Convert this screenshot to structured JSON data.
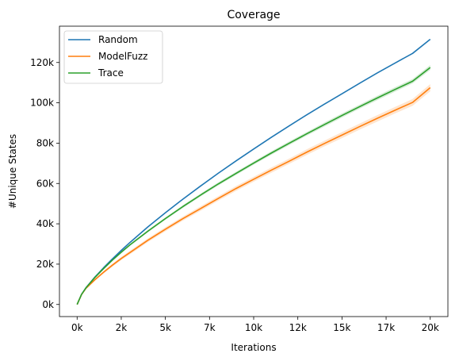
{
  "chart_data": {
    "type": "line",
    "title": "Coverage",
    "xlabel": "Iterations",
    "ylabel": "#Unique States",
    "xlim": [
      -1000,
      21000
    ],
    "ylim": [
      -6000,
      138000
    ],
    "x_ticks": [
      0,
      2500,
      5000,
      7500,
      10000,
      12500,
      15000,
      17500,
      20000
    ],
    "x_tick_labels": [
      "0k",
      "2k",
      "5k",
      "7k",
      "10k",
      "12k",
      "15k",
      "17k",
      "20k"
    ],
    "y_ticks": [
      0,
      20000,
      40000,
      60000,
      80000,
      100000,
      120000
    ],
    "y_tick_labels": [
      "0k",
      "20k",
      "40k",
      "60k",
      "80k",
      "100k",
      "120k"
    ],
    "grid": false,
    "legend_position": "top-left",
    "x": [
      0,
      250,
      500,
      1000,
      1500,
      2000,
      2500,
      3000,
      4000,
      5000,
      6000,
      7000,
      8000,
      9000,
      10000,
      11000,
      12000,
      13000,
      14000,
      15000,
      16000,
      17000,
      18000,
      19000,
      20000
    ],
    "series": [
      {
        "name": "Random",
        "color": "#1f77b4",
        "values": [
          0,
          5000,
          8300,
          13500,
          18200,
          22600,
          26800,
          30800,
          38400,
          45500,
          52300,
          58800,
          65100,
          71200,
          77100,
          82900,
          88500,
          94000,
          99300,
          104500,
          109700,
          114800,
          119700,
          124500,
          131500
        ]
      },
      {
        "name": "ModelFuzz",
        "color": "#ff7f0e",
        "band_halfwidth": [
          0,
          300,
          400,
          500,
          600,
          700,
          800,
          900,
          900,
          1000,
          1000,
          1100,
          1100,
          1200,
          1200,
          1300,
          1300,
          1400,
          1400,
          1500,
          1500,
          1600,
          1600,
          1700,
          1800
        ],
        "values": [
          0,
          4900,
          8000,
          12200,
          16000,
          19500,
          22800,
          25800,
          31800,
          37300,
          42600,
          47600,
          52600,
          57500,
          62100,
          66600,
          71000,
          75500,
          79800,
          84000,
          88200,
          92300,
          96300,
          100200,
          107500
        ]
      },
      {
        "name": "Trace",
        "color": "#2ca02c",
        "band_halfwidth": [
          0,
          200,
          300,
          300,
          400,
          400,
          500,
          500,
          600,
          600,
          700,
          700,
          800,
          800,
          800,
          900,
          900,
          900,
          1000,
          1000,
          1000,
          1100,
          1100,
          1100,
          1200
        ],
        "values": [
          0,
          5000,
          8200,
          13300,
          17800,
          22000,
          25900,
          29600,
          36300,
          42600,
          48600,
          54300,
          59800,
          65000,
          70100,
          75100,
          79900,
          84600,
          89200,
          93700,
          98100,
          102400,
          106600,
          110700,
          117500
        ]
      }
    ]
  }
}
